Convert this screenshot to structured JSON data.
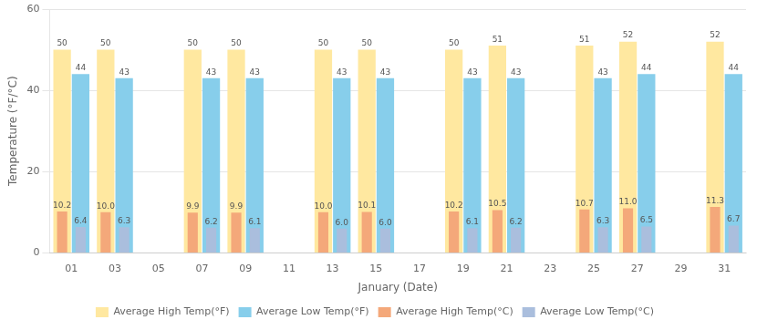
{
  "chart_data": {
    "type": "bar",
    "xlabel": "January (Date)",
    "ylabel": "Temperature (°F/°C)",
    "categories": [
      "01",
      "03",
      "05",
      "07",
      "09",
      "11",
      "13",
      "15",
      "17",
      "19",
      "21",
      "23",
      "25",
      "27",
      "29",
      "31"
    ],
    "series": [
      {
        "name": "Average High Temp(°F)",
        "color": "#FFE8A0",
        "values": [
          50,
          50,
          null,
          50,
          50,
          null,
          50,
          50,
          null,
          50,
          51,
          null,
          51,
          52,
          null,
          52
        ]
      },
      {
        "name": "Average Low Temp(°F)",
        "color": "#87CEEB",
        "values": [
          44,
          43,
          null,
          43,
          43,
          null,
          43,
          43,
          null,
          43,
          43,
          null,
          43,
          44,
          null,
          44
        ]
      },
      {
        "name": "Average High Temp(°C)",
        "color": "#F4A87A",
        "values": [
          10.2,
          10.0,
          null,
          9.9,
          9.9,
          null,
          10.0,
          10.1,
          null,
          10.2,
          10.5,
          null,
          10.7,
          11.0,
          null,
          11.3
        ],
        "value_labels": [
          "10.2",
          "10.0",
          null,
          "9.9",
          "9.9",
          null,
          "10.0",
          "10.1",
          null,
          "10.2",
          "10.5",
          null,
          "10.7",
          "11.0",
          null,
          "11.3"
        ]
      },
      {
        "name": "Average Low Temp(°C)",
        "color": "#AABEDD",
        "values": [
          6.4,
          6.3,
          null,
          6.2,
          6.1,
          null,
          6.0,
          6.0,
          null,
          6.1,
          6.2,
          null,
          6.3,
          6.5,
          null,
          6.7
        ],
        "value_labels": [
          "6.4",
          "6.3",
          null,
          "6.2",
          "6.1",
          null,
          "6.0",
          "6.0",
          null,
          "6.1",
          "6.2",
          null,
          "6.3",
          "6.5",
          null,
          "6.7"
        ]
      }
    ],
    "ylim": [
      0,
      60
    ],
    "yticks": [
      0,
      20,
      40,
      60
    ],
    "grid": "y",
    "legend": "bottom",
    "data_labels": true
  }
}
